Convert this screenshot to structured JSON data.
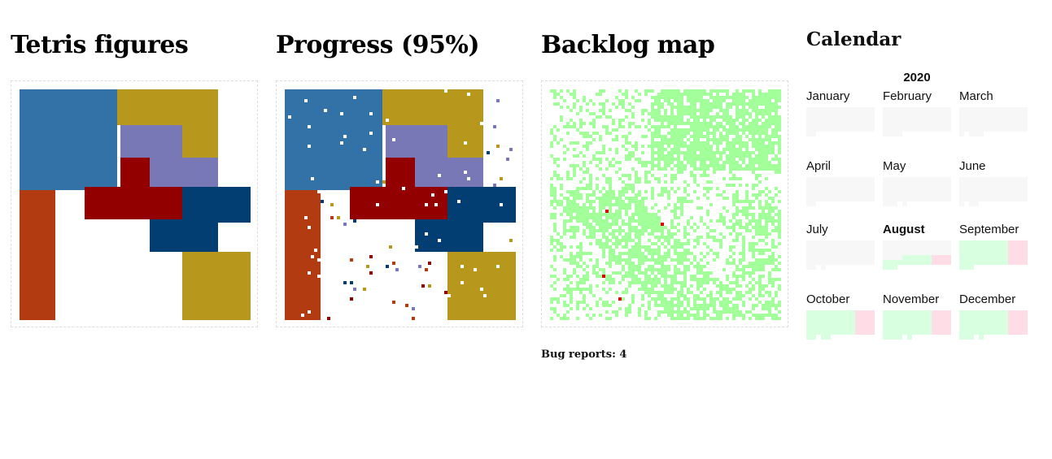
{
  "panels": {
    "tetris": {
      "title": "Tetris figures"
    },
    "progress": {
      "title": "Progress (95%)",
      "percent": 95
    },
    "backlog": {
      "title": "Backlog map",
      "bug_label": "Bug reports: 4",
      "bug_count": 4
    }
  },
  "calendar": {
    "title": "Calendar",
    "year": "2020",
    "current_month": "August",
    "months": [
      "January",
      "February",
      "March",
      "April",
      "May",
      "June",
      "July",
      "August",
      "September",
      "October",
      "November",
      "December"
    ]
  },
  "colors": {
    "steel_blue": "#3372a6",
    "mustard": "#b8981c",
    "lavender": "#7878b6",
    "dark_red": "#920000",
    "navy": "#023e72",
    "rust": "#b23b12",
    "backlog_green": "#a2ff9a",
    "bug_red": "#e00000",
    "cal_empty": "#f7f7f7",
    "cal_green": "#d8ffe0",
    "cal_pink": "#ffdde6"
  }
}
